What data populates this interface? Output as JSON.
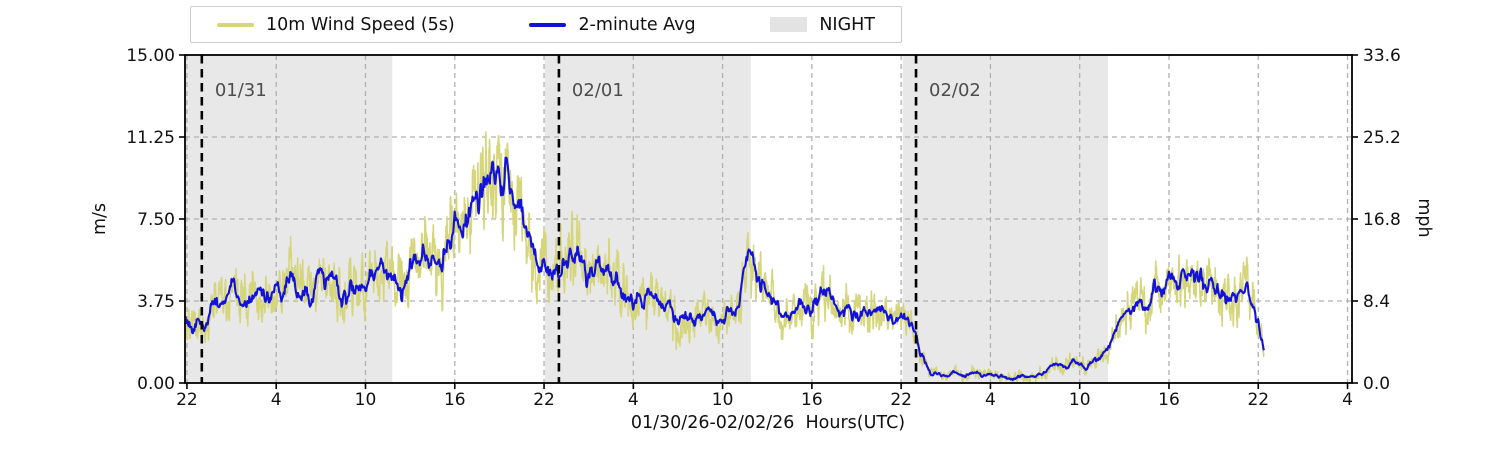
{
  "chart_data": {
    "type": "line",
    "xlabel": "01/30/26-02/02/26  Hours(UTC)",
    "ylabel_left": "m/s",
    "ylabel_right": "mph",
    "ylim": [
      0,
      15
    ],
    "grid": true,
    "legend_position": "top",
    "legend": {
      "items": [
        {
          "label": "10m Wind Speed (5s)",
          "swatch": "line",
          "color": "#d5d57c"
        },
        {
          "label": "2-minute Avg",
          "swatch": "line",
          "color": "#1212d9"
        },
        {
          "label": "NIGHT",
          "swatch": "patch",
          "color": "#e3e3e3"
        }
      ]
    },
    "x_axis": {
      "start_hour": 21.87,
      "end_hour": 100.3,
      "tick_start": 22,
      "tick_step": 6,
      "tick_labels": [
        "22",
        "4",
        "10",
        "16",
        "22",
        "4",
        "10",
        "16",
        "22",
        "4",
        "10",
        "16",
        "22",
        "4"
      ]
    },
    "yticks_left": [
      {
        "v": 0,
        "label": "0.00"
      },
      {
        "v": 3.75,
        "label": "3.75"
      },
      {
        "v": 7.5,
        "label": "7.50"
      },
      {
        "v": 11.25,
        "label": "11.25"
      },
      {
        "v": 15,
        "label": "15.00"
      }
    ],
    "yticks_right": [
      {
        "v": 0,
        "label": "0.0"
      },
      {
        "v": 3.75,
        "label": "8.4"
      },
      {
        "v": 7.5,
        "label": "16.8"
      },
      {
        "v": 11.25,
        "label": "25.2"
      },
      {
        "v": 15,
        "label": "33.6"
      }
    ],
    "night_regions": [
      [
        21.87,
        35.8
      ],
      [
        46.05,
        59.9
      ],
      [
        70.1,
        83.9
      ]
    ],
    "day_lines": [
      {
        "t": 23,
        "label": "01/31"
      },
      {
        "t": 47,
        "label": "02/01"
      },
      {
        "t": 71,
        "label": "02/02"
      }
    ],
    "series": [
      {
        "name": "10m Wind Speed (5s)",
        "color": "#d5d57c",
        "kind": "raw",
        "step_hours": 0.012,
        "spread_slope": 0.38,
        "spread_base": 0.28
      },
      {
        "name": "2-minute Avg",
        "color": "#1212d9",
        "kind": "avg",
        "step_hours": 0.03,
        "spread_slope": 0.18,
        "spread_base": 0.1
      }
    ],
    "data_start_hour": 21.9,
    "data_end_hour": 94.4,
    "mph_per_ms": 2.23694,
    "colors": {
      "night": "#e8e8e8",
      "grid": "#b0b0b0",
      "day_line": "#000000",
      "day_label": "#4d4d4d",
      "spine": "#000000",
      "tick_text": "#111111",
      "background": "#ffffff"
    },
    "avg_keypoints": [
      [
        21.9,
        3.3
      ],
      [
        22.4,
        2.9
      ],
      [
        22.8,
        3.5
      ],
      [
        23.2,
        2.7
      ],
      [
        23.6,
        3.3
      ],
      [
        24,
        3.9
      ],
      [
        24.5,
        3.6
      ],
      [
        25,
        4.2
      ],
      [
        25.5,
        3.8
      ],
      [
        26,
        4.4
      ],
      [
        26.5,
        4.0
      ],
      [
        27,
        4.5
      ],
      [
        27.5,
        4.1
      ],
      [
        28,
        4.6
      ],
      [
        28.5,
        4.2
      ],
      [
        29,
        4.8
      ],
      [
        29.5,
        4.3
      ],
      [
        30,
        4.7
      ],
      [
        30.5,
        4.2
      ],
      [
        31,
        4.6
      ],
      [
        31.5,
        4.3
      ],
      [
        32,
        4.8
      ],
      [
        32.5,
        4.4
      ],
      [
        33,
        4.9
      ],
      [
        33.5,
        4.5
      ],
      [
        34,
        5.0
      ],
      [
        34.5,
        4.7
      ],
      [
        35,
        5.1
      ],
      [
        35.5,
        4.8
      ],
      [
        36,
        5.3
      ],
      [
        36.5,
        5.0
      ],
      [
        37,
        5.6
      ],
      [
        37.5,
        5.3
      ],
      [
        38,
        5.9
      ],
      [
        38.5,
        6.2
      ],
      [
        39,
        6.0
      ],
      [
        39.5,
        6.6
      ],
      [
        40,
        7.1
      ],
      [
        40.4,
        6.8
      ],
      [
        40.8,
        7.6
      ],
      [
        41.2,
        8.8
      ],
      [
        41.6,
        8.2
      ],
      [
        42,
        9.2
      ],
      [
        42.4,
        8.7
      ],
      [
        42.8,
        9.6
      ],
      [
        43.1,
        8.9
      ],
      [
        43.4,
        9.3
      ],
      [
        43.8,
        8.3
      ],
      [
        44.2,
        7.6
      ],
      [
        44.6,
        7.1
      ],
      [
        45,
        6.7
      ],
      [
        45.5,
        6.1
      ],
      [
        46,
        5.7
      ],
      [
        46.5,
        5.3
      ],
      [
        47,
        5.0
      ],
      [
        47.4,
        5.5
      ],
      [
        47.8,
        5.9
      ],
      [
        48.2,
        6.5
      ],
      [
        48.6,
        5.7
      ],
      [
        49,
        5.2
      ],
      [
        49.5,
        5.6
      ],
      [
        50,
        5.0
      ],
      [
        50.5,
        4.7
      ],
      [
        51,
        5.0
      ],
      [
        51.5,
        4.5
      ],
      [
        52,
        4.1
      ],
      [
        52.5,
        3.8
      ],
      [
        53,
        4.0
      ],
      [
        53.5,
        3.5
      ],
      [
        54,
        3.2
      ],
      [
        54.5,
        3.4
      ],
      [
        55,
        3.0
      ],
      [
        55.5,
        3.3
      ],
      [
        56,
        2.9
      ],
      [
        56.5,
        3.2
      ],
      [
        57,
        3.5
      ],
      [
        57.5,
        3.2
      ],
      [
        58,
        3.0
      ],
      [
        58.5,
        3.3
      ],
      [
        59,
        3.7
      ],
      [
        59.4,
        4.9
      ],
      [
        59.8,
        5.5
      ],
      [
        60.2,
        4.9
      ],
      [
        60.6,
        4.3
      ],
      [
        61,
        3.9
      ],
      [
        61.5,
        3.5
      ],
      [
        62,
        3.2
      ],
      [
        62.5,
        3.0
      ],
      [
        63,
        3.3
      ],
      [
        63.5,
        3.6
      ],
      [
        64,
        3.9
      ],
      [
        64.5,
        4.2
      ],
      [
        65,
        3.8
      ],
      [
        65.5,
        3.4
      ],
      [
        66,
        3.1
      ],
      [
        66.5,
        3.3
      ],
      [
        67,
        3.0
      ],
      [
        67.5,
        3.2
      ],
      [
        68,
        2.9
      ],
      [
        68.5,
        3.1
      ],
      [
        69,
        2.8
      ],
      [
        69.5,
        2.6
      ],
      [
        70,
        2.9
      ],
      [
        70.4,
        3.1
      ],
      [
        70.8,
        2.5
      ],
      [
        71.1,
        2.1
      ],
      [
        71.4,
        1.4
      ],
      [
        71.7,
        0.8
      ],
      [
        72,
        0.5
      ],
      [
        72.5,
        0.35
      ],
      [
        73,
        0.3
      ],
      [
        73.5,
        0.4
      ],
      [
        74,
        0.3
      ],
      [
        74.5,
        0.35
      ],
      [
        75,
        0.45
      ],
      [
        75.5,
        0.3
      ],
      [
        76,
        0.35
      ],
      [
        76.5,
        0.3
      ],
      [
        77,
        0.4
      ],
      [
        77.5,
        0.3
      ],
      [
        78,
        0.45
      ],
      [
        78.5,
        0.35
      ],
      [
        79,
        0.3
      ],
      [
        79.5,
        0.5
      ],
      [
        80,
        0.7
      ],
      [
        80.5,
        0.9
      ],
      [
        81,
        0.7
      ],
      [
        81.5,
        1.0
      ],
      [
        82,
        0.8
      ],
      [
        82.5,
        0.7
      ],
      [
        83,
        0.9
      ],
      [
        83.5,
        1.1
      ],
      [
        84,
        1.5
      ],
      [
        84.5,
        2.2
      ],
      [
        85,
        2.9
      ],
      [
        85.5,
        3.5
      ],
      [
        86,
        3.9
      ],
      [
        86.5,
        3.6
      ],
      [
        87,
        4.1
      ],
      [
        87.5,
        3.8
      ],
      [
        88,
        4.4
      ],
      [
        88.5,
        4.0
      ],
      [
        89,
        4.6
      ],
      [
        89.5,
        4.3
      ],
      [
        90,
        4.7
      ],
      [
        90.5,
        4.4
      ],
      [
        91,
        5.0
      ],
      [
        91.5,
        4.7
      ],
      [
        92,
        4.4
      ],
      [
        92.5,
        4.2
      ],
      [
        93,
        4.4
      ],
      [
        93.4,
        3.8
      ],
      [
        93.8,
        3.0
      ],
      [
        94.1,
        2.4
      ],
      [
        94.4,
        1.4
      ]
    ]
  }
}
